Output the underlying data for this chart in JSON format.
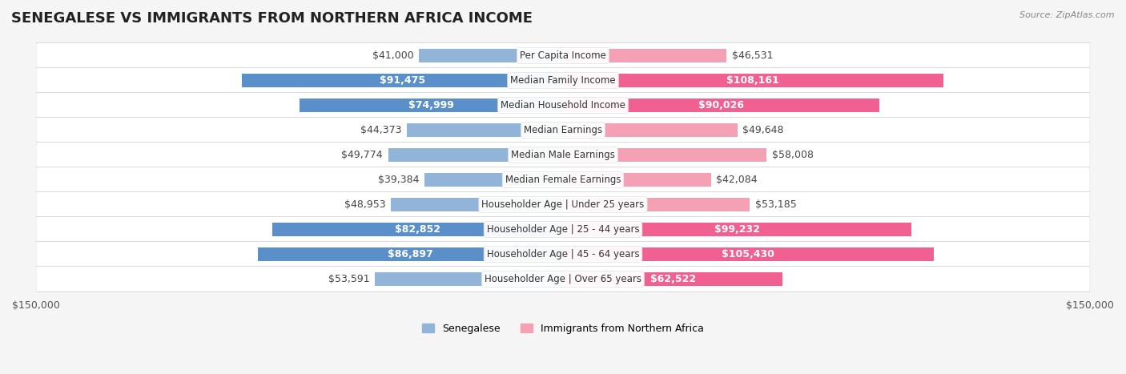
{
  "title": "SENEGALESE VS IMMIGRANTS FROM NORTHERN AFRICA INCOME",
  "source": "Source: ZipAtlas.com",
  "categories": [
    "Per Capita Income",
    "Median Family Income",
    "Median Household Income",
    "Median Earnings",
    "Median Male Earnings",
    "Median Female Earnings",
    "Householder Age | Under 25 years",
    "Householder Age | 25 - 44 years",
    "Householder Age | 45 - 64 years",
    "Householder Age | Over 65 years"
  ],
  "senegalese_values": [
    41000,
    91475,
    74999,
    44373,
    49774,
    39384,
    48953,
    82852,
    86897,
    53591
  ],
  "immigrant_values": [
    46531,
    108161,
    90026,
    49648,
    58008,
    42084,
    53185,
    99232,
    105430,
    62522
  ],
  "senegalese_labels": [
    "$41,000",
    "$91,475",
    "$74,999",
    "$44,373",
    "$49,774",
    "$39,384",
    "$48,953",
    "$82,852",
    "$86,897",
    "$53,591"
  ],
  "immigrant_labels": [
    "$46,531",
    "$108,161",
    "$90,026",
    "$49,648",
    "$58,008",
    "$42,084",
    "$53,185",
    "$99,232",
    "$105,430",
    "$62,522"
  ],
  "senegalese_color": "#92b4d9",
  "immigrant_color": "#f4a0b5",
  "senegalese_color_dark": "#5b8fc9",
  "immigrant_color_dark": "#f06090",
  "axis_limit": 150000,
  "bar_height": 0.55,
  "background_color": "#f5f5f5",
  "row_bg_color": "#ffffff",
  "label_fontsize": 9,
  "title_fontsize": 13,
  "legend_label_senegalese": "Senegalese",
  "legend_label_immigrant": "Immigrants from Northern Africa"
}
